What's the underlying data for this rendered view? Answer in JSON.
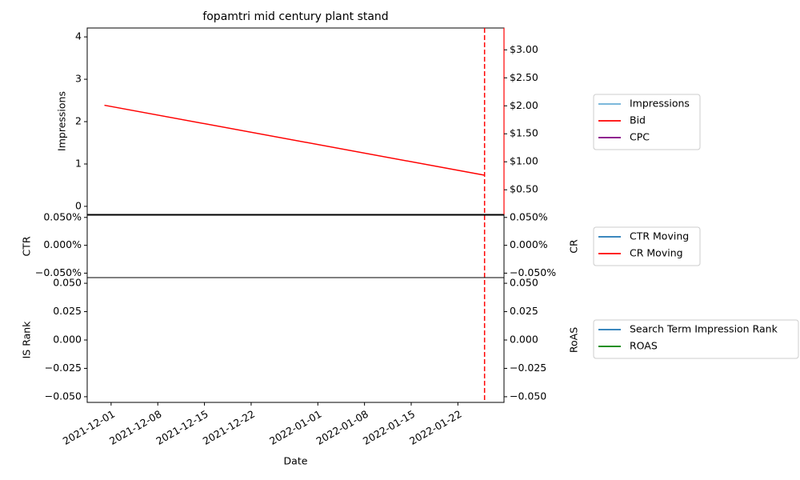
{
  "chart_data": [
    {
      "type": "line",
      "title": "fopamtri mid century plant stand",
      "y_label": "Impressions",
      "x": [
        "2021-11-30",
        "2022-01-26"
      ],
      "series": [
        {
          "name": "Impressions",
          "color": "#6aaed6",
          "values": [
            null,
            null
          ]
        },
        {
          "name": "Bid",
          "color": "#ff0000",
          "values": [
            2.01,
            0.76
          ],
          "axis": "y2"
        },
        {
          "name": "CPC",
          "color": "#800080",
          "values": [
            null,
            null
          ],
          "axis": "y2"
        }
      ],
      "ylim": [
        -0.19,
        4.21
      ],
      "yticks": [
        0,
        1,
        2,
        3,
        4
      ],
      "y2lim": [
        0.06,
        3.39
      ],
      "y2ticks": [
        {
          "value": 0.5,
          "label": "$0.50"
        },
        {
          "value": 1,
          "label": "$1.00"
        },
        {
          "value": 1.5,
          "label": "$1.50"
        },
        {
          "value": 2,
          "label": "$2.00"
        },
        {
          "value": 2.5,
          "label": "$2.50"
        },
        {
          "value": 3,
          "label": "$3.00"
        }
      ],
      "ytick_color": "#0000ff",
      "y2tick_color": "#000000",
      "y2spine_color": "#ff0000",
      "vline": {
        "x": "2022-01-26",
        "color": "#ff0000"
      }
    },
    {
      "type": "line",
      "y_label": "CTR",
      "y2_label": "CR",
      "x": [
        "2021-11-30",
        "2022-01-26"
      ],
      "series": [
        {
          "name": "CTR Moving",
          "color": "#1f77b4",
          "values": [
            null,
            null
          ]
        },
        {
          "name": "CR Moving",
          "color": "#ff0000",
          "values": [
            null,
            null
          ],
          "axis": "y2"
        }
      ],
      "ylim": [
        -0.058,
        0.054
      ],
      "yticks": [
        {
          "value": -0.05,
          "label": "−0.050%"
        },
        {
          "value": 0,
          "label": "0.000%"
        },
        {
          "value": 0.05,
          "label": "0.050%"
        }
      ],
      "y2lim": [
        -0.058,
        0.054
      ],
      "y2ticks": [
        {
          "value": -0.05,
          "label": "−0.050%"
        },
        {
          "value": 0,
          "label": "0.000%"
        },
        {
          "value": 0.05,
          "label": "0.050%"
        }
      ],
      "ytick_color": "#0000ff",
      "y2tick_color": "#ff0000"
    },
    {
      "type": "line",
      "y_label": "IS Rank",
      "y2_label": "RoAS",
      "x_label": "Date",
      "x": [
        "2021-11-30",
        "2022-01-26"
      ],
      "series": [
        {
          "name": "Search Term Impression Rank",
          "color": "#1f77b4",
          "values": [
            null,
            null
          ]
        },
        {
          "name": "ROAS",
          "color": "#008000",
          "values": [
            null,
            null
          ],
          "axis": "y2"
        }
      ],
      "ylim": [
        -0.055,
        0.055
      ],
      "yticks": [
        {
          "value": -0.05,
          "label": "−0.050"
        },
        {
          "value": -0.025,
          "label": "−0.025"
        },
        {
          "value": 0,
          "label": "0.000"
        },
        {
          "value": 0.025,
          "label": "0.025"
        },
        {
          "value": 0.05,
          "label": "0.050"
        }
      ],
      "y2lim": [
        -0.055,
        0.055
      ],
      "y2ticks": [
        {
          "value": -0.05,
          "label": "−0.050"
        },
        {
          "value": -0.025,
          "label": "−0.025"
        },
        {
          "value": 0,
          "label": "0.000"
        },
        {
          "value": 0.025,
          "label": "0.025"
        },
        {
          "value": 0.05,
          "label": "0.050"
        }
      ],
      "ytick_color": "#0000ff",
      "y2tick_color": "#008000",
      "xlim": [
        "2021-11-27T10:00",
        "2022-01-28T22:00"
      ],
      "xticks": [
        "2021-12-01",
        "2021-12-08",
        "2021-12-15",
        "2021-12-22",
        "2022-01-01",
        "2022-01-08",
        "2022-01-15",
        "2022-01-22"
      ]
    }
  ]
}
